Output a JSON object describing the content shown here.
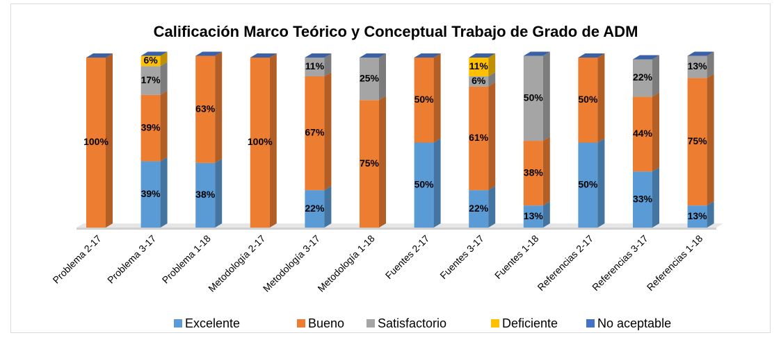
{
  "chart_data": {
    "type": "bar",
    "stacked": true,
    "title": "Calificación Marco Teórico y Conceptual Trabajo de Grado de ADM",
    "categories": [
      "Problema 2-17",
      "Problema 3-17",
      "Problema 1-18",
      "Metodología 2-17",
      "Metodología 3-17",
      "Metodología 1-18",
      "Fuentes 2-17",
      "Fuentes 3-17",
      "Fuentes 1-18",
      "Referencias 2-17",
      "Referencias 3-17",
      "Referencias 1-18"
    ],
    "series": [
      {
        "name": "Excelente",
        "color": "#5b9bd5",
        "values": [
          0,
          39,
          38,
          0,
          22,
          0,
          50,
          22,
          13,
          50,
          33,
          13
        ],
        "value_labels": [
          null,
          "39%",
          "38%",
          null,
          "22%",
          null,
          "50%",
          "22%",
          "13%",
          "50%",
          "33%",
          "13%"
        ]
      },
      {
        "name": "Bueno",
        "color": "#ed7d31",
        "values": [
          100,
          39,
          63,
          100,
          67,
          75,
          50,
          61,
          38,
          50,
          44,
          75
        ],
        "value_labels": [
          "100%",
          "39%",
          "63%",
          "100%",
          "67%",
          "75%",
          "50%",
          "61%",
          "38%",
          "50%",
          "44%",
          "75%"
        ]
      },
      {
        "name": "Satisfactorio",
        "color": "#a5a5a5",
        "values": [
          0,
          17,
          0,
          0,
          11,
          25,
          0,
          6,
          50,
          0,
          22,
          13
        ],
        "value_labels": [
          null,
          "17%",
          null,
          null,
          "11%",
          "25%",
          null,
          "6%",
          "50%",
          null,
          "22%",
          "13%"
        ]
      },
      {
        "name": "Deficiente",
        "color": "#ffc000",
        "values": [
          0,
          6,
          0,
          0,
          0,
          0,
          0,
          11,
          0,
          0,
          0,
          0
        ],
        "value_labels": [
          null,
          "6%",
          null,
          null,
          null,
          null,
          null,
          "11%",
          null,
          null,
          null,
          null
        ]
      },
      {
        "name": "No aceptable",
        "color": "#4472c4",
        "values": [
          0,
          0,
          0,
          0,
          0,
          0,
          0,
          0,
          0,
          0,
          0,
          0
        ],
        "value_labels": [
          null,
          null,
          null,
          null,
          null,
          null,
          null,
          null,
          null,
          null,
          null,
          null
        ]
      }
    ],
    "ylim": [
      0,
      100
    ],
    "legend": "bottom"
  }
}
